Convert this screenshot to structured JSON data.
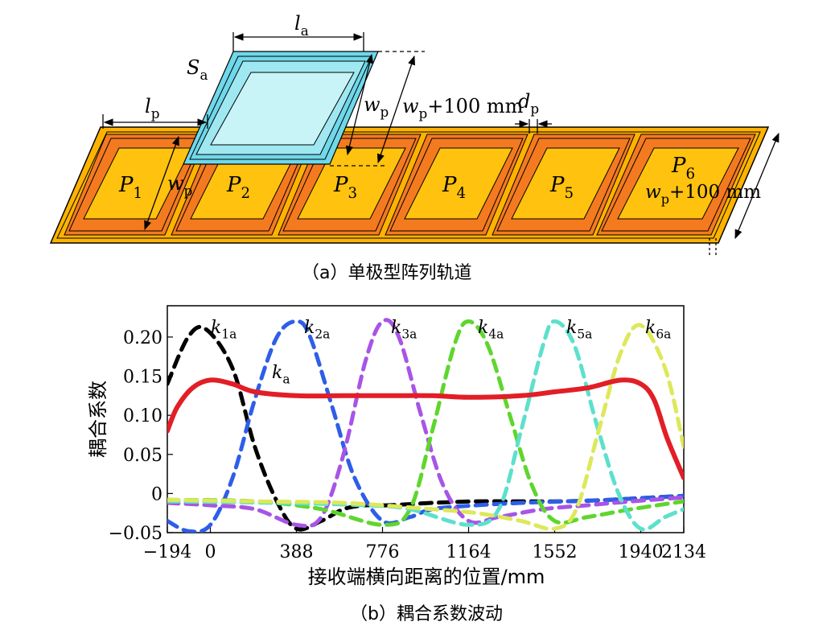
{
  "panel_a": {
    "caption": "（a）单极型阵列轨道",
    "pads": [
      "P1",
      "P2",
      "P3",
      "P4",
      "P5",
      "P6"
    ],
    "labels": {
      "la": "la",
      "Sa": "Sa",
      "lp": "lp",
      "wp": "wp",
      "wp_plus": "wp+100 mm",
      "dp": "dp"
    }
  },
  "panel_b": {
    "caption": "（b）耦合系数波动",
    "ylabel": "耦合系数",
    "xlabel": "接收端横向距离的位置/mm",
    "curve_labels": [
      "k1a",
      "k2a",
      "k3a",
      "k4a",
      "k5a",
      "k6a",
      "ka"
    ]
  },
  "colors": {
    "pad_fill": "#ffc20e",
    "pad_border": "#f47a20",
    "track_outer": "#ffb300",
    "receiver_fill": "#b8f0f6",
    "receiver_frame": "#6fd8ea",
    "k1a": "#000000",
    "k2a": "#2e5ee8",
    "k3a": "#a855e6",
    "k4a": "#5fd62e",
    "k5a": "#5de0cc",
    "k6a": "#dde85a",
    "ka": "#e21e26"
  },
  "chart_data": {
    "type": "line",
    "xlabel": "接收端横向距离的位置/mm",
    "ylabel": "耦合系数",
    "xlim": [
      -194,
      2134
    ],
    "ylim": [
      -0.05,
      0.24
    ],
    "xticks": [
      -194,
      0,
      388,
      776,
      1164,
      1552,
      1940,
      2134
    ],
    "xtick_labels": [
      "−194",
      "0",
      "388",
      "776",
      "1164",
      "1552",
      "1940",
      "2134"
    ],
    "yticks": [
      -0.05,
      0,
      0.05,
      0.1,
      0.15,
      0.2
    ],
    "ytick_labels": [
      "−0.05",
      "0",
      "0.05",
      "0.10",
      "0.15",
      "0.20"
    ],
    "series": [
      {
        "name": "k1a",
        "style": "dashed",
        "x": [
          -194,
          -100,
          -20,
          100,
          200,
          300,
          388,
          500,
          600,
          700,
          800,
          1000,
          1200,
          1400,
          1600,
          1800,
          2000,
          2134
        ],
        "y": [
          0.14,
          0.2,
          0.21,
          0.16,
          0.06,
          -0.01,
          -0.045,
          -0.035,
          -0.02,
          -0.015,
          -0.015,
          -0.012,
          -0.01,
          -0.01,
          -0.01,
          -0.008,
          -0.005,
          -0.003
        ]
      },
      {
        "name": "k2a",
        "style": "dashed",
        "x": [
          -194,
          -100,
          0,
          100,
          200,
          300,
          388,
          450,
          550,
          650,
          776,
          900,
          1000,
          1200,
          1400,
          1600,
          1800,
          2000,
          2134
        ],
        "y": [
          -0.035,
          -0.048,
          -0.04,
          0.02,
          0.12,
          0.2,
          0.22,
          0.2,
          0.11,
          0.02,
          -0.035,
          -0.03,
          -0.02,
          -0.015,
          -0.012,
          -0.01,
          -0.008,
          -0.005,
          -0.003
        ]
      },
      {
        "name": "k3a",
        "style": "dashed",
        "x": [
          -194,
          0,
          200,
          388,
          500,
          600,
          700,
          776,
          850,
          950,
          1050,
          1164,
          1300,
          1500,
          1700,
          1900,
          2134
        ],
        "y": [
          -0.012,
          -0.015,
          -0.02,
          -0.04,
          -0.03,
          0.05,
          0.17,
          0.22,
          0.2,
          0.1,
          0.01,
          -0.035,
          -0.03,
          -0.02,
          -0.015,
          -0.01,
          -0.005
        ]
      },
      {
        "name": "k4a",
        "style": "dashed",
        "x": [
          -194,
          200,
          500,
          776,
          900,
          1000,
          1100,
          1164,
          1250,
          1350,
          1450,
          1552,
          1700,
          1900,
          2134
        ],
        "y": [
          -0.008,
          -0.01,
          -0.02,
          -0.04,
          -0.02,
          0.08,
          0.19,
          0.22,
          0.19,
          0.1,
          0.01,
          -0.035,
          -0.03,
          -0.02,
          -0.01
        ]
      },
      {
        "name": "k5a",
        "style": "dashed",
        "x": [
          -194,
          300,
          700,
          900,
          1164,
          1300,
          1400,
          1500,
          1552,
          1640,
          1740,
          1840,
          1940,
          2050,
          2134
        ],
        "y": [
          -0.01,
          -0.012,
          -0.015,
          -0.02,
          -0.04,
          -0.02,
          0.08,
          0.19,
          0.22,
          0.19,
          0.09,
          0.0,
          -0.045,
          -0.03,
          -0.02
        ]
      },
      {
        "name": "k6a",
        "style": "dashed",
        "x": [
          -194,
          200,
          600,
          1000,
          1200,
          1400,
          1552,
          1650,
          1750,
          1850,
          1940,
          2050,
          2134
        ],
        "y": [
          -0.008,
          -0.01,
          -0.012,
          -0.02,
          -0.025,
          -0.035,
          -0.045,
          -0.02,
          0.08,
          0.18,
          0.215,
          0.16,
          0.06
        ]
      },
      {
        "name": "ka",
        "style": "solid",
        "x": [
          -194,
          -150,
          -80,
          0,
          100,
          200,
          388,
          600,
          776,
          1000,
          1164,
          1400,
          1552,
          1700,
          1850,
          1940,
          2000,
          2060,
          2134
        ],
        "y": [
          0.08,
          0.11,
          0.135,
          0.145,
          0.14,
          0.13,
          0.125,
          0.125,
          0.125,
          0.125,
          0.123,
          0.125,
          0.13,
          0.135,
          0.145,
          0.14,
          0.12,
          0.07,
          0.02
        ]
      }
    ]
  }
}
